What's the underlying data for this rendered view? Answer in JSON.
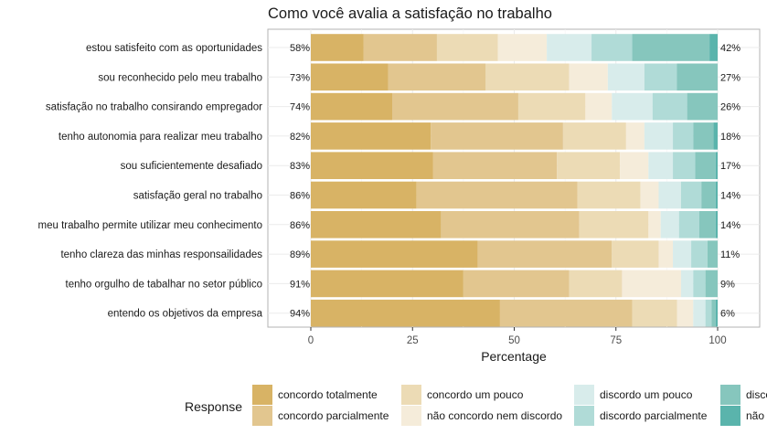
{
  "chart_data": {
    "type": "bar",
    "orientation": "horizontal",
    "stacked": true,
    "title": "Como você avalia a satisfação no trabalho",
    "xlabel": "Percentage",
    "ylabel": "",
    "xlim": [
      0,
      100
    ],
    "x_ticks": [
      "0",
      "25",
      "50",
      "75",
      "100"
    ],
    "grid": true,
    "legend_position": "bottom",
    "legend_title": "Response",
    "categories": [
      "estou satisfeito com as oportunidades",
      "sou reconhecido pelo meu trabalho",
      "satisfação no trabalho consirando empregador",
      "tenho autonomia para realizar meu trabalho",
      "sou suficientemente desafiado",
      "satisfação geral no trabalho",
      "meu trabalho permite utilizar meu conhecimento",
      "tenho clareza das minhas responsailidades",
      "tenho orgulho de tabalhar no setor público",
      "entendo os objetivos da empresa"
    ],
    "left_labels": [
      "58%",
      "73%",
      "74%",
      "82%",
      "83%",
      "86%",
      "86%",
      "89%",
      "91%",
      "94%"
    ],
    "right_labels": [
      "42%",
      "27%",
      "26%",
      "18%",
      "17%",
      "14%",
      "14%",
      "11%",
      "9%",
      "6%"
    ],
    "series": [
      {
        "name": "concordo totalmente",
        "color": "#d8b365",
        "values": [
          13,
          19,
          20,
          29.5,
          30,
          26,
          32,
          41,
          37.5,
          46.5
        ]
      },
      {
        "name": "concordo parcialmente",
        "color": "#e2c68f",
        "values": [
          18,
          24,
          31,
          32.5,
          30.5,
          39.5,
          34,
          33,
          26,
          32.5
        ]
      },
      {
        "name": "concordo um pouco",
        "color": "#ecdbb5",
        "values": [
          15,
          20.5,
          16.5,
          15.5,
          15.5,
          15.5,
          17,
          11.5,
          13,
          11
        ]
      },
      {
        "name": "não concordo nem discordo",
        "color": "#f5ecda",
        "values": [
          12,
          9.5,
          6.5,
          4.5,
          7,
          4.5,
          3,
          3.5,
          14.5,
          4
        ]
      },
      {
        "name": "discordo um pouco",
        "color": "#d8eceb",
        "values": [
          11,
          9,
          10,
          7,
          6,
          5.5,
          4.5,
          4.5,
          3,
          3
        ]
      },
      {
        "name": "discordo parcialmente",
        "color": "#b0dbd7",
        "values": [
          10,
          8,
          8.5,
          5,
          5.5,
          5,
          5,
          4,
          3,
          1.5
        ]
      },
      {
        "name": "discordo totalmente",
        "color": "#86c6bd",
        "values": [
          19,
          10,
          7.5,
          5,
          5,
          3.5,
          4,
          2.5,
          3,
          1
        ]
      },
      {
        "name": "não se aplica",
        "color": "#5ab4ac",
        "values": [
          2,
          0,
          0,
          1,
          0.5,
          0.5,
          0.5,
          0.5,
          0,
          0.5
        ]
      }
    ]
  },
  "legend": {
    "title": "Response",
    "items": [
      {
        "label": "concordo totalmente",
        "color": "#d8b365"
      },
      {
        "label": "concordo parcialmente",
        "color": "#e2c68f"
      },
      {
        "label": "concordo um pouco",
        "color": "#ecdbb5"
      },
      {
        "label": "não concordo nem discordo",
        "color": "#f5ecda"
      },
      {
        "label": "discordo um pouco",
        "color": "#d8eceb"
      },
      {
        "label": "discordo parcialmente",
        "color": "#b0dbd7"
      },
      {
        "label": "disco",
        "color": "#86c6bd"
      },
      {
        "label": "não",
        "color": "#5ab4ac"
      }
    ]
  }
}
